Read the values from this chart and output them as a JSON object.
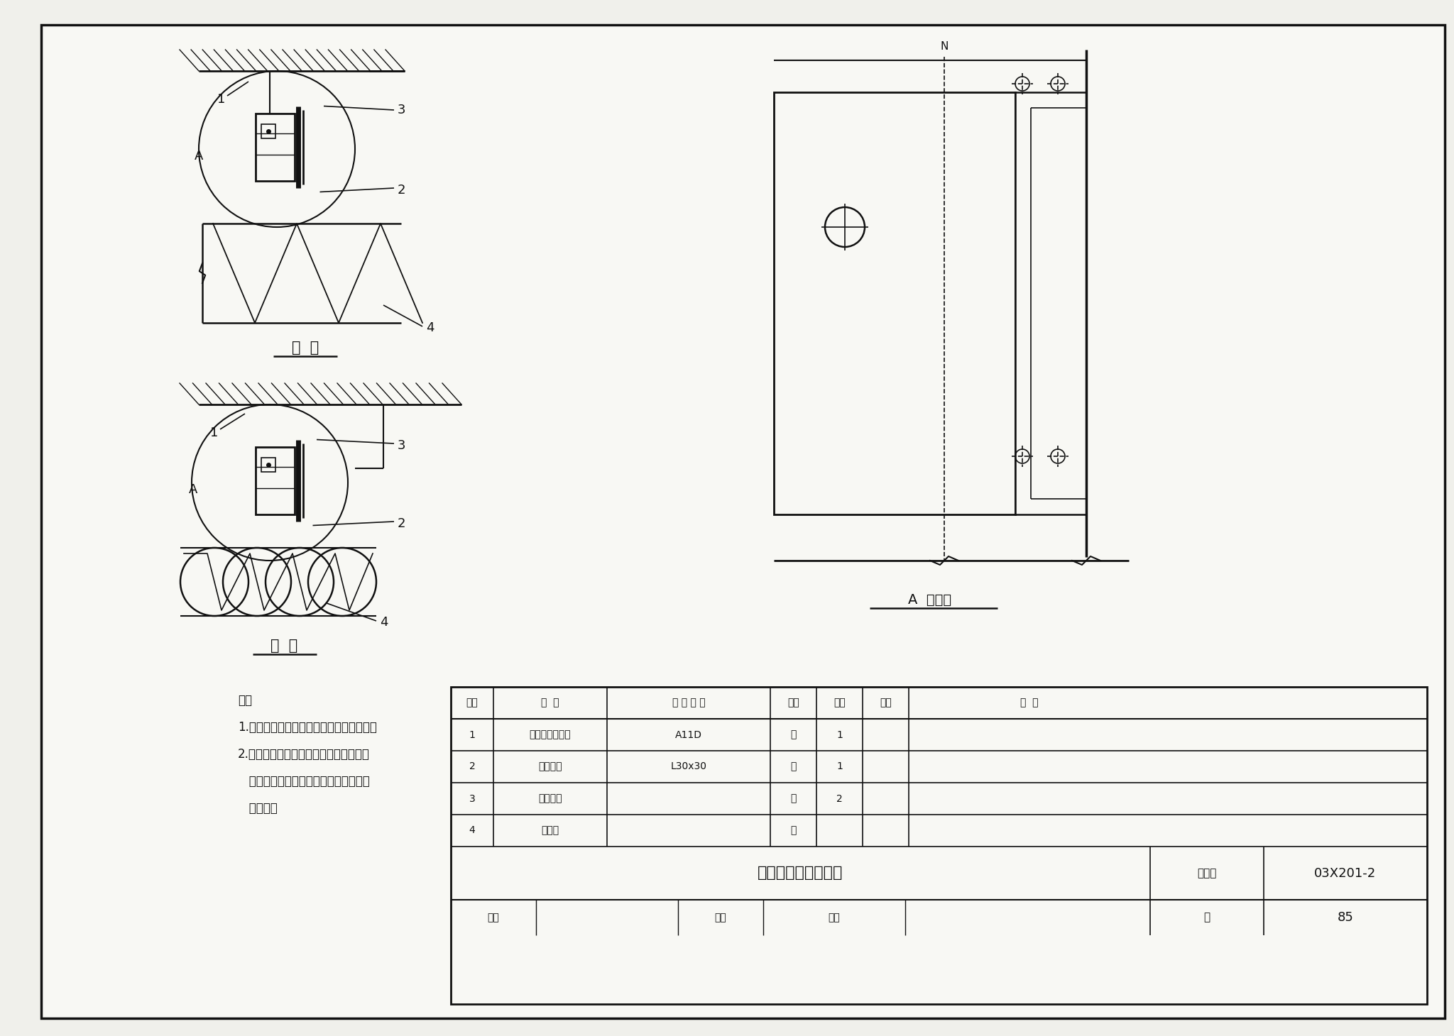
{
  "bg_color": "#f0f0eb",
  "paper_color": "#f8f8f4",
  "line_color": "#111111",
  "title_text": "低温断路控制器安装",
  "atlas_no": "03X201-2",
  "page_no": "85",
  "table_headers": [
    "序号",
    "名  称",
    "型 号 规 格",
    "单位",
    "数量",
    "页次",
    "备  注"
  ],
  "table_rows": [
    [
      "1",
      "低温断路控制器",
      "A11D",
      "套",
      "1",
      "",
      ""
    ],
    [
      "2",
      "固定支架",
      "L30x30",
      "根",
      "1",
      "",
      ""
    ],
    [
      "3",
      "膨胀螺栓",
      "",
      "只",
      "2",
      "",
      ""
    ],
    [
      "4",
      "感温线",
      "",
      "米",
      "",
      "",
      ""
    ]
  ],
  "notes": [
    "注：",
    "1.将感温线绕在被保护的风（水）管道上。",
    "2.亦可将感温线固定在需要低温保护的盘",
    "   管表面，当温度低于设定值时，控制器",
    "   即断开。"
  ],
  "label_fenguan": "风  管",
  "label_shuiguan": "水  管",
  "label_fangda": "A  放大图"
}
